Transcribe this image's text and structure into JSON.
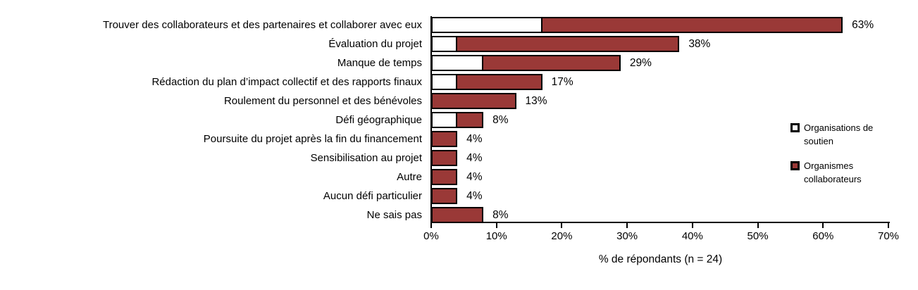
{
  "chart_data": {
    "type": "bar",
    "orientation": "horizontal",
    "xlabel": "% de répondants (n = 24)",
    "xlim": [
      0,
      70
    ],
    "x_ticks": [
      "0%",
      "10%",
      "20%",
      "30%",
      "40%",
      "50%",
      "60%",
      "70%"
    ],
    "grid": false,
    "legend_position": "right",
    "bar_outline_color": "#000000",
    "categories": [
      "Trouver des collaborateurs et des partenaires et collaborer avec eux",
      "Évaluation du projet",
      "Manque de temps",
      "Rédaction du plan d’impact collectif et des rapports finaux",
      "Roulement du personnel et des bénévoles",
      "Défi géographique",
      "Poursuite du projet après la fin du financement",
      "Sensibilisation au projet",
      "Autre",
      "Aucun défi particulier",
      "Ne sais pas"
    ],
    "series": [
      {
        "name": "Organisations de soutien",
        "fill": "#FFFFFF",
        "values": [
          17,
          4,
          8,
          4,
          0,
          4,
          0,
          0,
          0,
          0,
          0
        ]
      },
      {
        "name": "Organismes collaborateurs",
        "fill": "#9A3937",
        "values": [
          63,
          38,
          29,
          17,
          13,
          8,
          4,
          4,
          4,
          4,
          8
        ]
      }
    ],
    "value_labels": [
      "63%",
      "38%",
      "29%",
      "17%",
      "13%",
      "8%",
      "4%",
      "4%",
      "4%",
      "4%",
      "8%"
    ]
  }
}
